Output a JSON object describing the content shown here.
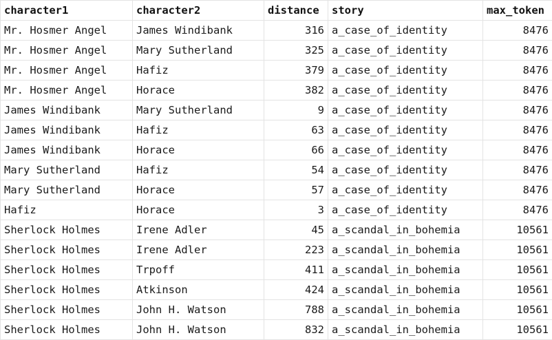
{
  "columns": [
    {
      "label": "character1",
      "align": "left"
    },
    {
      "label": "character2",
      "align": "left"
    },
    {
      "label": "distance",
      "align": "left"
    },
    {
      "label": "story",
      "align": "left"
    },
    {
      "label": "max_token",
      "align": "left"
    }
  ],
  "rows": [
    [
      "Mr. Hosmer Angel",
      "James Windibank",
      "316",
      "a_case_of_identity",
      "8476"
    ],
    [
      "Mr. Hosmer Angel",
      "Mary Sutherland",
      "325",
      "a_case_of_identity",
      "8476"
    ],
    [
      "Mr. Hosmer Angel",
      "Hafiz",
      "379",
      "a_case_of_identity",
      "8476"
    ],
    [
      "Mr. Hosmer Angel",
      "Horace",
      "382",
      "a_case_of_identity",
      "8476"
    ],
    [
      "James Windibank",
      "Mary Sutherland",
      "9",
      "a_case_of_identity",
      "8476"
    ],
    [
      "James Windibank",
      "Hafiz",
      "63",
      "a_case_of_identity",
      "8476"
    ],
    [
      "James Windibank",
      "Horace",
      "66",
      "a_case_of_identity",
      "8476"
    ],
    [
      "Mary Sutherland",
      "Hafiz",
      "54",
      "a_case_of_identity",
      "8476"
    ],
    [
      "Mary Sutherland",
      "Horace",
      "57",
      "a_case_of_identity",
      "8476"
    ],
    [
      "Hafiz",
      "Horace",
      "3",
      "a_case_of_identity",
      "8476"
    ],
    [
      "Sherlock Holmes",
      "Irene Adler",
      "45",
      "a_scandal_in_bohemia",
      "10561"
    ],
    [
      "Sherlock Holmes",
      "Irene Adler",
      "223",
      "a_scandal_in_bohemia",
      "10561"
    ],
    [
      "Sherlock Holmes",
      "Trpoff",
      "411",
      "a_scandal_in_bohemia",
      "10561"
    ],
    [
      "Sherlock Holmes",
      "Atkinson",
      "424",
      "a_scandal_in_bohemia",
      "10561"
    ],
    [
      "Sherlock Holmes",
      "John H. Watson",
      "788",
      "a_scandal_in_bohemia",
      "10561"
    ],
    [
      "Sherlock Holmes",
      "John H. Watson",
      "832",
      "a_scandal_in_bohemia",
      "10561"
    ]
  ],
  "colors": {
    "border": "#e3e3e3",
    "text": "#1a1a1a",
    "background": "#ffffff"
  }
}
